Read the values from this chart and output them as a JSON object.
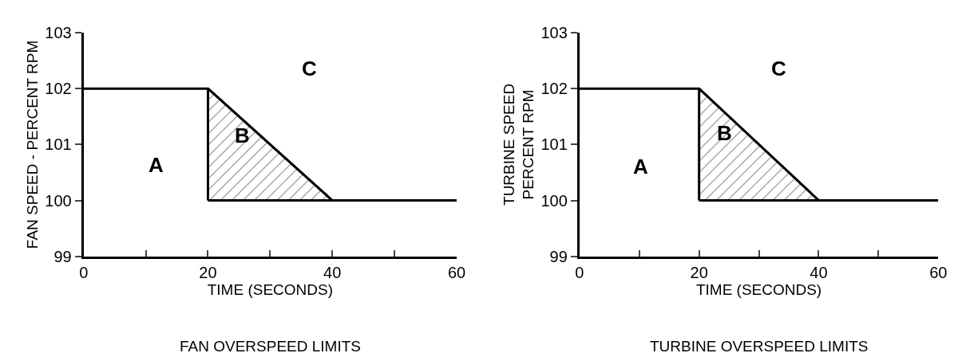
{
  "chart_data": [
    {
      "type": "line",
      "xlabel": "TIME (SECONDS)",
      "ylabel": "FAN SPEED - PERCENT RPM",
      "xlim": [
        0,
        60
      ],
      "ylim": [
        99,
        103
      ],
      "xticks": [
        0,
        {
          "value": 10,
          "label": null
        },
        20,
        {
          "value": 30,
          "label": null
        },
        40,
        {
          "value": 50,
          "label": null
        },
        60
      ],
      "yticks": [
        99,
        100,
        101,
        102,
        103
      ],
      "series": [
        {
          "x": [
            0,
            20,
            40,
            60
          ],
          "values": [
            102,
            102,
            100,
            100
          ],
          "color": "#000000"
        },
        {
          "type": "area",
          "x": [
            20,
            20,
            40
          ],
          "values": [
            100,
            102,
            100
          ],
          "color": "#000000"
        }
      ],
      "annotations": [
        "A",
        "B",
        "C",
        "FAN OVERSPEED LIMITS"
      ]
    },
    {
      "type": "line",
      "xlabel": "TIME (SECONDS)",
      "ylabel": "TURBINE SPEED\nPERCENT RPM",
      "xlim": [
        0,
        60
      ],
      "ylim": [
        99,
        103
      ],
      "xticks": [
        0,
        {
          "value": 10,
          "label": null
        },
        20,
        {
          "value": 30,
          "label": null
        },
        40,
        {
          "value": 50,
          "label": null
        },
        60
      ],
      "yticks": [
        99,
        100,
        101,
        102,
        103
      ],
      "series": [
        {
          "x": [
            0,
            20,
            40,
            60
          ],
          "values": [
            102,
            102,
            100,
            100
          ],
          "color": "#000000"
        },
        {
          "type": "area",
          "x": [
            20,
            20,
            40
          ],
          "values": [
            100,
            102,
            100
          ],
          "color": "#000000"
        }
      ],
      "annotations": [
        "A",
        "B",
        "C",
        "TURBINE OVERSPEED LIMITS"
      ]
    }
  ]
}
